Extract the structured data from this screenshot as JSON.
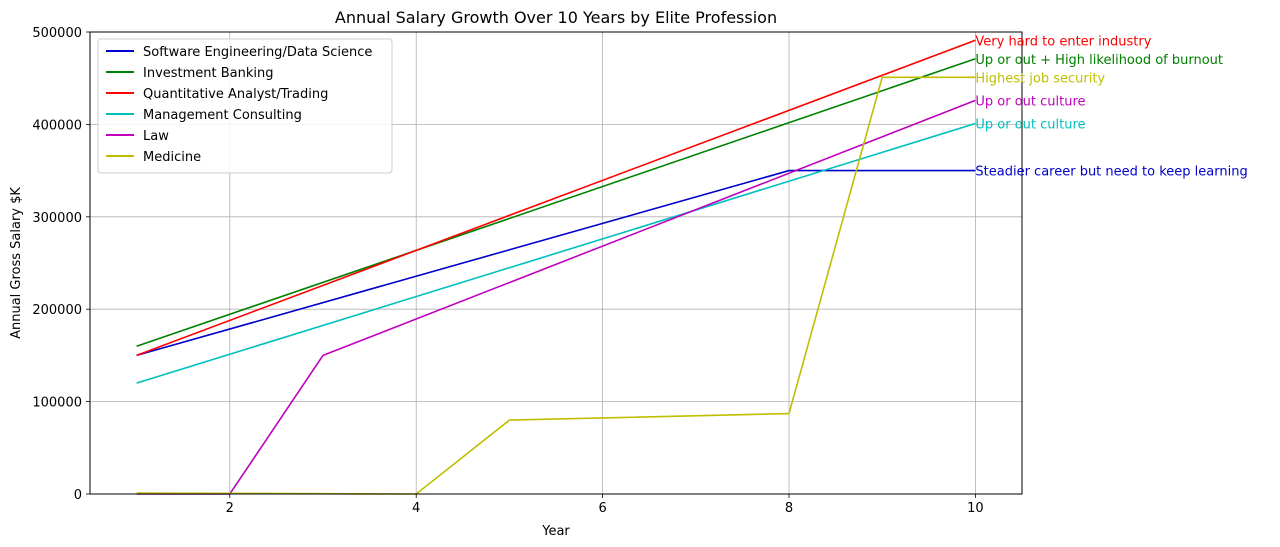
{
  "chart_data": {
    "type": "line",
    "title": "Annual Salary Growth Over 10 Years by Elite Profession",
    "xlabel": "Year",
    "ylabel": "Annual Gross Salary $K",
    "xlim": [
      0.5,
      10.5
    ],
    "ylim": [
      0,
      500000
    ],
    "xticks": [
      2,
      4,
      6,
      8,
      10
    ],
    "yticks": [
      0,
      100000,
      200000,
      300000,
      400000,
      500000
    ],
    "grid": true,
    "legend_position": "upper-left",
    "series": [
      {
        "name": "Software Engineering/Data Science",
        "color": "#0000cc",
        "points": [
          [
            1,
            150000
          ],
          [
            8,
            350000
          ],
          [
            10,
            350000
          ]
        ],
        "annotation": "Steadier career but need to keep learning"
      },
      {
        "name": "Investment Banking",
        "color": "#008000",
        "points": [
          [
            1,
            160000
          ],
          [
            10,
            471000
          ]
        ],
        "annotation": "Up or out + High likelihood of burnout"
      },
      {
        "name": "Quantitative Analyst/Trading",
        "color": "#ff0000",
        "points": [
          [
            1,
            150000
          ],
          [
            10,
            491000
          ]
        ],
        "annotation": "Very hard to enter industry"
      },
      {
        "name": "Management Consulting",
        "color": "#00bfbf",
        "points": [
          [
            1,
            120000
          ],
          [
            10,
            401000
          ]
        ],
        "annotation": "Up or out culture"
      },
      {
        "name": "Law",
        "color": "#bf00bf",
        "points": [
          [
            1,
            0
          ],
          [
            2,
            0
          ],
          [
            3,
            150000
          ],
          [
            10,
            426000
          ]
        ],
        "annotation": "Up or out culture"
      },
      {
        "name": "Medicine",
        "color": "#bfbf00",
        "points": [
          [
            1,
            1000
          ],
          [
            4,
            0
          ],
          [
            5,
            80000
          ],
          [
            8,
            87000
          ],
          [
            9,
            451000
          ],
          [
            10,
            451000
          ]
        ],
        "annotation": "Highest job security"
      }
    ]
  }
}
